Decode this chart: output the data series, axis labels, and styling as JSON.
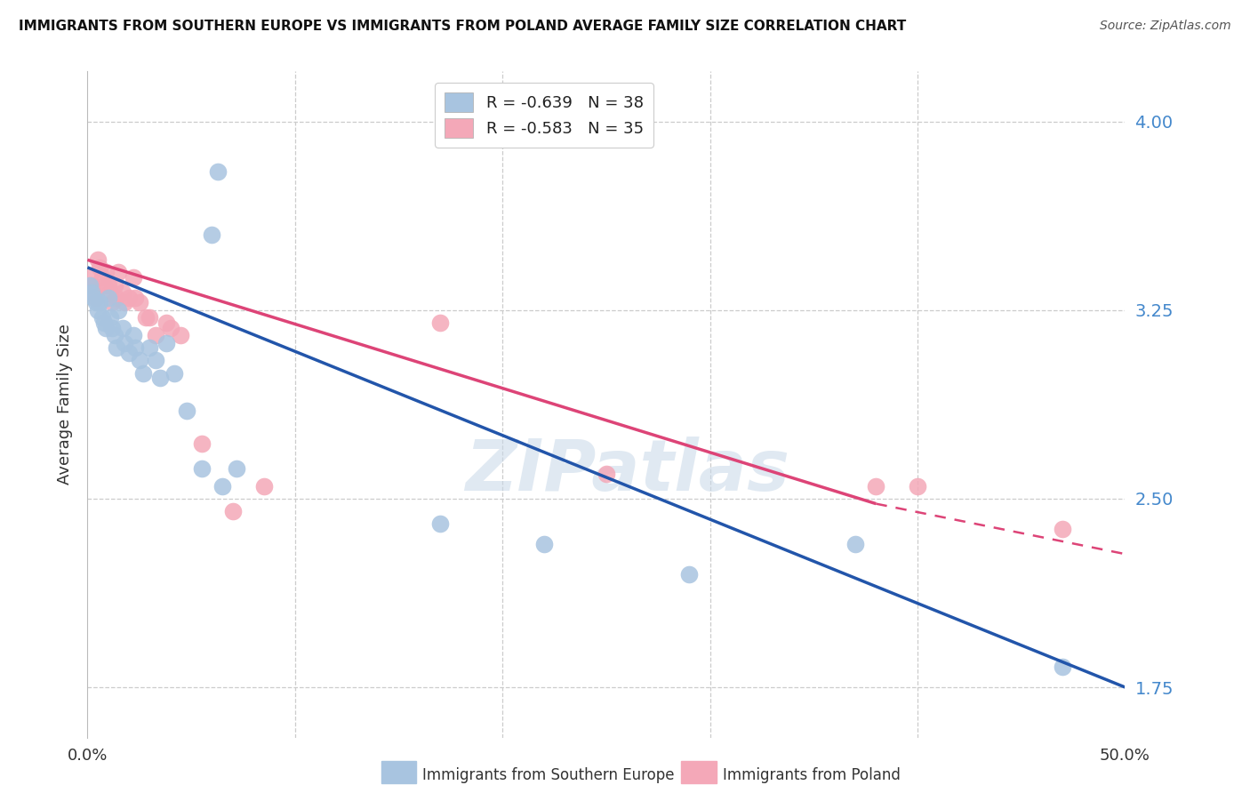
{
  "title": "IMMIGRANTS FROM SOUTHERN EUROPE VS IMMIGRANTS FROM POLAND AVERAGE FAMILY SIZE CORRELATION CHART",
  "source": "Source: ZipAtlas.com",
  "ylabel": "Average Family Size",
  "ytick_values": [
    1.75,
    2.5,
    3.25,
    4.0
  ],
  "xlim": [
    0.0,
    0.5
  ],
  "ylim": [
    1.55,
    4.2
  ],
  "blue_R": "-0.639",
  "blue_N": "38",
  "pink_R": "-0.583",
  "pink_N": "35",
  "blue_color": "#a8c4e0",
  "pink_color": "#f4a8b8",
  "blue_line_color": "#2255aa",
  "pink_line_color": "#dd4477",
  "legend_label_blue": "Immigrants from Southern Europe",
  "legend_label_pink": "Immigrants from Poland",
  "watermark": "ZIPatlas",
  "blue_x": [
    0.001,
    0.002,
    0.003,
    0.004,
    0.005,
    0.006,
    0.007,
    0.008,
    0.009,
    0.01,
    0.011,
    0.012,
    0.013,
    0.014,
    0.015,
    0.017,
    0.018,
    0.02,
    0.022,
    0.023,
    0.025,
    0.027,
    0.03,
    0.033,
    0.035,
    0.038,
    0.042,
    0.048,
    0.055,
    0.065,
    0.072,
    0.17,
    0.22,
    0.29,
    0.37,
    0.47,
    0.063,
    0.06
  ],
  "blue_y": [
    3.35,
    3.32,
    3.3,
    3.28,
    3.25,
    3.28,
    3.22,
    3.2,
    3.18,
    3.3,
    3.22,
    3.18,
    3.15,
    3.1,
    3.25,
    3.18,
    3.12,
    3.08,
    3.15,
    3.1,
    3.05,
    3.0,
    3.1,
    3.05,
    2.98,
    3.12,
    3.0,
    2.85,
    2.62,
    2.55,
    2.62,
    2.4,
    2.32,
    2.2,
    2.32,
    1.83,
    3.8,
    3.55
  ],
  "pink_x": [
    0.001,
    0.002,
    0.003,
    0.004,
    0.005,
    0.006,
    0.007,
    0.008,
    0.009,
    0.01,
    0.011,
    0.012,
    0.013,
    0.014,
    0.015,
    0.017,
    0.018,
    0.02,
    0.022,
    0.023,
    0.025,
    0.028,
    0.03,
    0.033,
    0.038,
    0.04,
    0.045,
    0.055,
    0.07,
    0.085,
    0.17,
    0.25,
    0.38,
    0.47,
    0.4
  ],
  "pink_y": [
    3.38,
    3.35,
    3.32,
    3.3,
    3.45,
    3.42,
    3.38,
    3.35,
    3.4,
    3.35,
    3.32,
    3.28,
    3.35,
    3.3,
    3.4,
    3.32,
    3.28,
    3.3,
    3.38,
    3.3,
    3.28,
    3.22,
    3.22,
    3.15,
    3.2,
    3.18,
    3.15,
    2.72,
    2.45,
    2.55,
    3.2,
    2.6,
    2.55,
    2.38,
    2.55
  ],
  "blue_line_x0": 0.0,
  "blue_line_y0": 3.42,
  "blue_line_x1": 0.5,
  "blue_line_y1": 1.75,
  "pink_line_x0": 0.0,
  "pink_line_y0": 3.45,
  "pink_line_x1_solid": 0.38,
  "pink_line_y1_solid": 2.48,
  "pink_line_x1_dash": 0.5,
  "pink_line_y1_dash": 2.28
}
